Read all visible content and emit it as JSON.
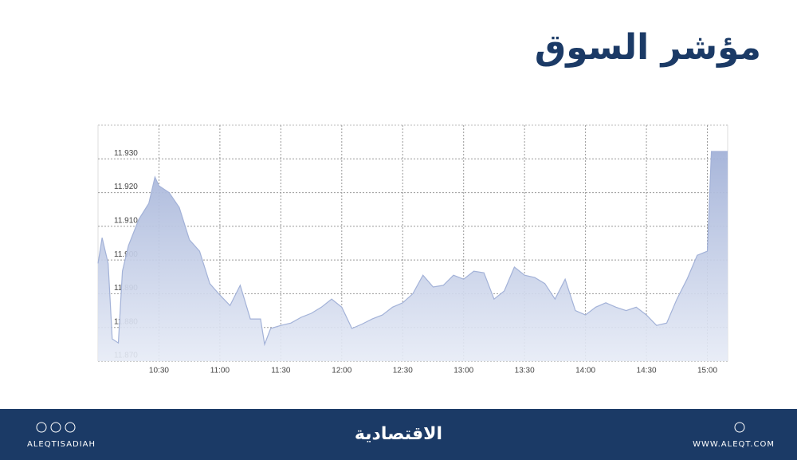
{
  "chart_data": {
    "type": "area",
    "title": "مؤشر السوق",
    "x": [
      "10:00",
      "10:02",
      "10:05",
      "10:07",
      "10:10",
      "10:12",
      "10:15",
      "10:20",
      "10:25",
      "10:28",
      "10:30",
      "10:35",
      "10:40",
      "10:45",
      "10:50",
      "10:55",
      "11:00",
      "11:05",
      "11:10",
      "11:15",
      "11:20",
      "11:22",
      "11:25",
      "11:30",
      "11:35",
      "11:40",
      "11:45",
      "11:50",
      "11:55",
      "12:00",
      "12:05",
      "12:10",
      "12:15",
      "12:20",
      "12:25",
      "12:30",
      "12:35",
      "12:40",
      "12:45",
      "12:50",
      "12:55",
      "13:00",
      "13:05",
      "13:10",
      "13:15",
      "13:20",
      "13:25",
      "13:30",
      "13:35",
      "13:40",
      "13:45",
      "13:50",
      "13:55",
      "14:00",
      "14:05",
      "14:10",
      "14:15",
      "14:20",
      "14:25",
      "14:30",
      "14:35",
      "14:40",
      "14:45",
      "14:50",
      "14:55",
      "15:00",
      "15:02",
      "15:10"
    ],
    "values": [
      11.899,
      11.9066,
      11.899,
      11.8766,
      11.8754,
      11.8967,
      11.9043,
      11.912,
      11.9168,
      11.9246,
      11.922,
      11.92,
      11.9156,
      11.906,
      11.9026,
      11.893,
      11.8896,
      11.8865,
      11.8925,
      11.8825,
      11.8825,
      11.875,
      11.8797,
      11.8806,
      11.8813,
      11.883,
      11.8842,
      11.886,
      11.8884,
      11.886,
      11.8797,
      11.881,
      11.8825,
      11.8837,
      11.886,
      11.8873,
      11.89,
      11.8955,
      11.892,
      11.8925,
      11.8955,
      11.8943,
      11.8967,
      11.8962,
      11.8884,
      11.8908,
      11.8979,
      11.8955,
      11.8948,
      11.893,
      11.8884,
      11.8943,
      11.885,
      11.8837,
      11.886,
      11.8873,
      11.886,
      11.885,
      11.886,
      11.8837,
      11.8806,
      11.8813,
      11.8884,
      11.8943,
      11.9014,
      11.9026,
      11.9322,
      11.9322
    ],
    "color": "#a3b2d8",
    "xlim": [
      "10:00",
      "15:10"
    ],
    "xticks": [
      "10:30",
      "11:00",
      "11:30",
      "12:00",
      "12:30",
      "13:00",
      "13:30",
      "14:00",
      "14:30",
      "15:00"
    ],
    "ylim": [
      11.87,
      11.94
    ],
    "yticks": [
      {
        "value": 11.87,
        "label": "11.870"
      },
      {
        "value": 11.88,
        "label": "11.880"
      },
      {
        "value": 11.89,
        "label": "11.890"
      },
      {
        "value": 11.9,
        "label": "11.900"
      },
      {
        "value": 11.91,
        "label": "11.910"
      },
      {
        "value": 11.92,
        "label": "11.920"
      },
      {
        "value": 11.93,
        "label": "11.930"
      }
    ],
    "grid": true
  },
  "footer": {
    "handle": "ALEQTISADIAH",
    "brand": "الاقتصادية",
    "website": "WWW.ALEQT.COM"
  }
}
